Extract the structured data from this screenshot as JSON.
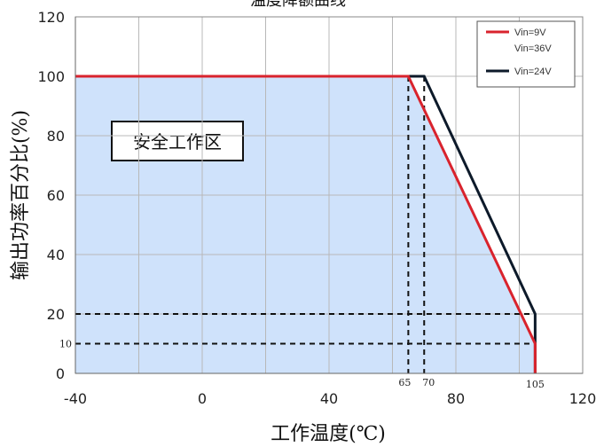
{
  "chart_data": {
    "type": "line",
    "title": "温度降额曲线",
    "xlabel": "工作温度(℃)",
    "ylabel": "输出功率百分比(%)",
    "xlim": [
      -40,
      120
    ],
    "ylim": [
      0,
      120
    ],
    "x_ticks": [
      "-40",
      "0",
      "40",
      "80",
      "120"
    ],
    "y_ticks": [
      "0",
      "20",
      "40",
      "60",
      "80",
      "100",
      "120"
    ],
    "grid": true,
    "legend_position": "top-right",
    "series": [
      {
        "name": "Vin=9V\nVin=36V",
        "legend_lines": [
          "Vin=9V",
          "Vin=36V"
        ],
        "color": "#d9232d",
        "points": [
          [
            -40,
            100
          ],
          [
            65,
            100
          ],
          [
            105,
            10
          ],
          [
            105,
            0
          ]
        ]
      },
      {
        "name": "Vin=24V",
        "legend_lines": [
          "Vin=24V"
        ],
        "color": "#0d1a2a",
        "points": [
          [
            -40,
            100
          ],
          [
            70,
            100
          ],
          [
            105,
            20
          ],
          [
            105,
            0
          ]
        ]
      }
    ],
    "safe_zone": {
      "label": "安全工作区",
      "fill_color": "#cfe2fb",
      "boundary": [
        [
          -40,
          0
        ],
        [
          -40,
          100
        ],
        [
          65,
          100
        ],
        [
          105,
          10
        ],
        [
          105,
          0
        ]
      ]
    },
    "reference_lines": [
      {
        "axis": "x",
        "value": 65,
        "label": "65"
      },
      {
        "axis": "x",
        "value": 70,
        "label": "70"
      },
      {
        "axis": "y",
        "value": 20,
        "label": ""
      },
      {
        "axis": "y",
        "value": 10,
        "label": "10"
      }
    ],
    "annotations": [
      {
        "x": 105,
        "label": "105"
      }
    ]
  }
}
